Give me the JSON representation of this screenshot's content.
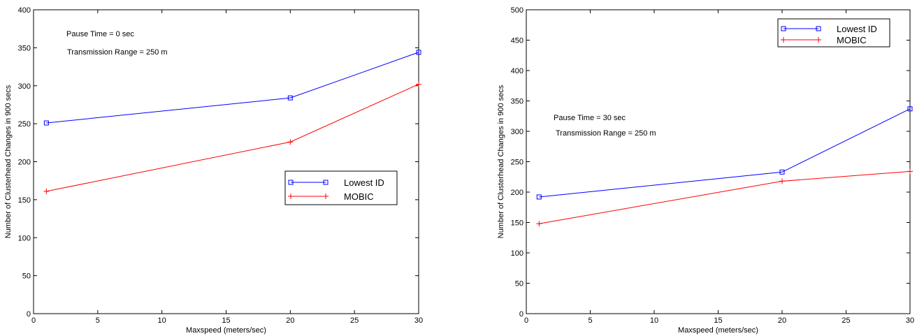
{
  "chart_data": [
    {
      "type": "line",
      "xlabel": "Maxspeed (meters/sec)",
      "ylabel": "Number of Clusterhead Changes in 900 secs",
      "xlim": [
        0,
        30
      ],
      "ylim": [
        0,
        400
      ],
      "xticks": [
        "0",
        "5",
        "10",
        "15",
        "20",
        "25",
        "30"
      ],
      "yticks": [
        "0",
        "50",
        "100",
        "150",
        "200",
        "250",
        "300",
        "350",
        "400"
      ],
      "grid": false,
      "legend_position": "center-right",
      "annotations": [
        "Pause Time = 0 sec",
        "Transmission Range = 250 m"
      ],
      "x": [
        1,
        20,
        30
      ],
      "series": [
        {
          "name": "Lowest ID",
          "values": [
            251,
            284,
            344
          ],
          "color": "#0000ff",
          "marker": "square"
        },
        {
          "name": "MOBIC",
          "values": [
            161,
            226,
            302
          ],
          "color": "#ff0000",
          "marker": "plus"
        }
      ]
    },
    {
      "type": "line",
      "xlabel": "Maxspeed (meters/sec)",
      "ylabel": "Number of Clusterhead Changes in 900 secs",
      "xlim": [
        0,
        30
      ],
      "ylim": [
        0,
        500
      ],
      "xticks": [
        "0",
        "5",
        "10",
        "15",
        "20",
        "25",
        "30"
      ],
      "yticks": [
        "0",
        "50",
        "100",
        "150",
        "200",
        "250",
        "300",
        "350",
        "400",
        "450",
        "500"
      ],
      "grid": false,
      "legend_position": "top-right",
      "annotations": [
        "Pause Time = 30 sec",
        "Transmission Range = 250 m"
      ],
      "x": [
        1,
        20,
        30
      ],
      "series": [
        {
          "name": "Lowest ID",
          "values": [
            192,
            233,
            337
          ],
          "color": "#0000ff",
          "marker": "square"
        },
        {
          "name": "MOBIC",
          "values": [
            148,
            218,
            234
          ],
          "color": "#ff0000",
          "marker": "plus"
        }
      ]
    }
  ]
}
